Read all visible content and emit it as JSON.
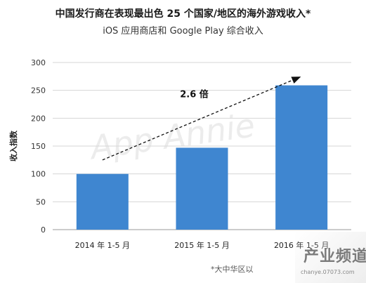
{
  "title": "中国发行商在表现最出色 25 个国家/地区的海外游戏收入*",
  "subtitle": "iOS 应用商店和 Google Play 综合收入",
  "footnote": "*大中华区以",
  "watermark_brand": "App Annie",
  "site_badge": {
    "main": "产业频道",
    "url": "chanye.07073.com"
  },
  "chart_data": {
    "type": "bar",
    "categories": [
      "2014 年 1-5 月",
      "2015 年 1-5 月",
      "2016 年 1-5 月"
    ],
    "values": [
      100,
      147,
      259
    ],
    "ylabel": "收入指数",
    "ylim": [
      0,
      300
    ],
    "yticks": [
      0,
      50,
      100,
      150,
      200,
      250,
      300
    ],
    "annotation": "2.6 倍",
    "bar_color": "#3f86d0",
    "grid": true
  }
}
